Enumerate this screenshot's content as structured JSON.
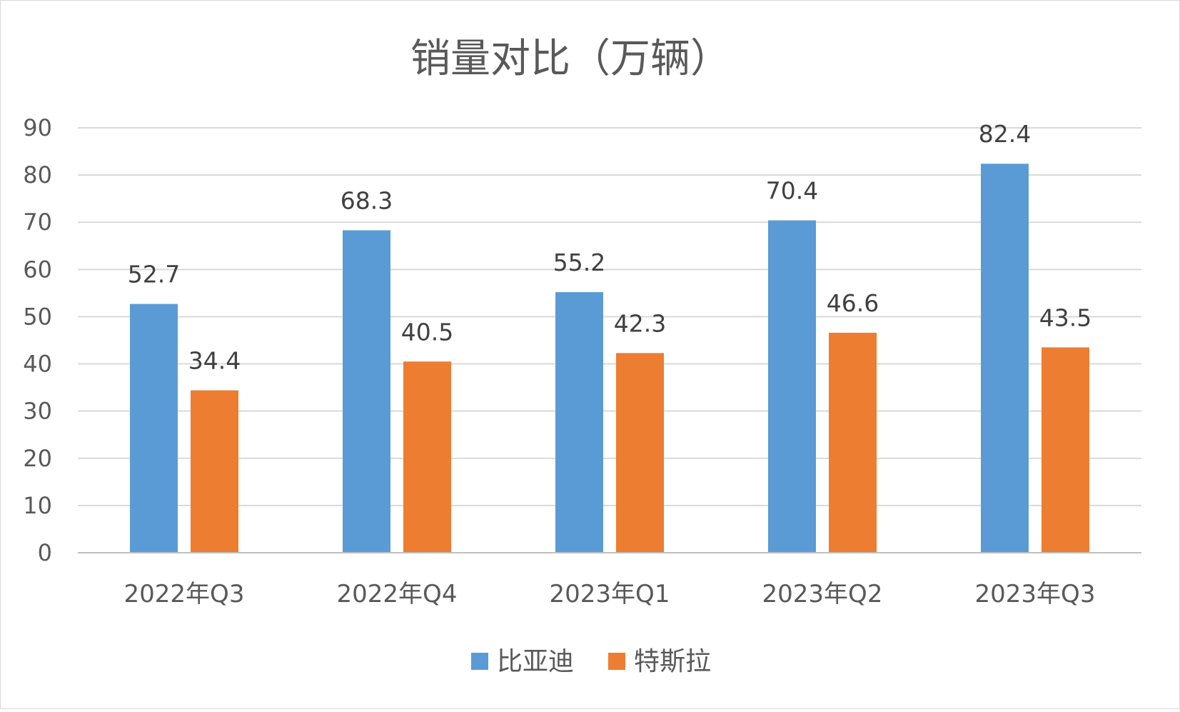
{
  "chart_data": {
    "type": "bar",
    "title": "销量对比（万辆）",
    "categories": [
      "2022年Q3",
      "2022年Q4",
      "2023年Q1",
      "2023年Q2",
      "2023年Q3"
    ],
    "series": [
      {
        "name": "比亚迪",
        "values": [
          52.7,
          68.3,
          55.2,
          70.4,
          82.4
        ],
        "color": "#5b9bd5"
      },
      {
        "name": "特斯拉",
        "values": [
          34.4,
          40.5,
          42.3,
          46.6,
          43.5
        ],
        "color": "#ed7d31"
      }
    ],
    "ylim": [
      0,
      90
    ],
    "yticks": [
      0,
      10,
      20,
      30,
      40,
      50,
      60,
      70,
      80,
      90
    ],
    "grid": true,
    "legend_position": "bottom",
    "data_labels": true
  }
}
